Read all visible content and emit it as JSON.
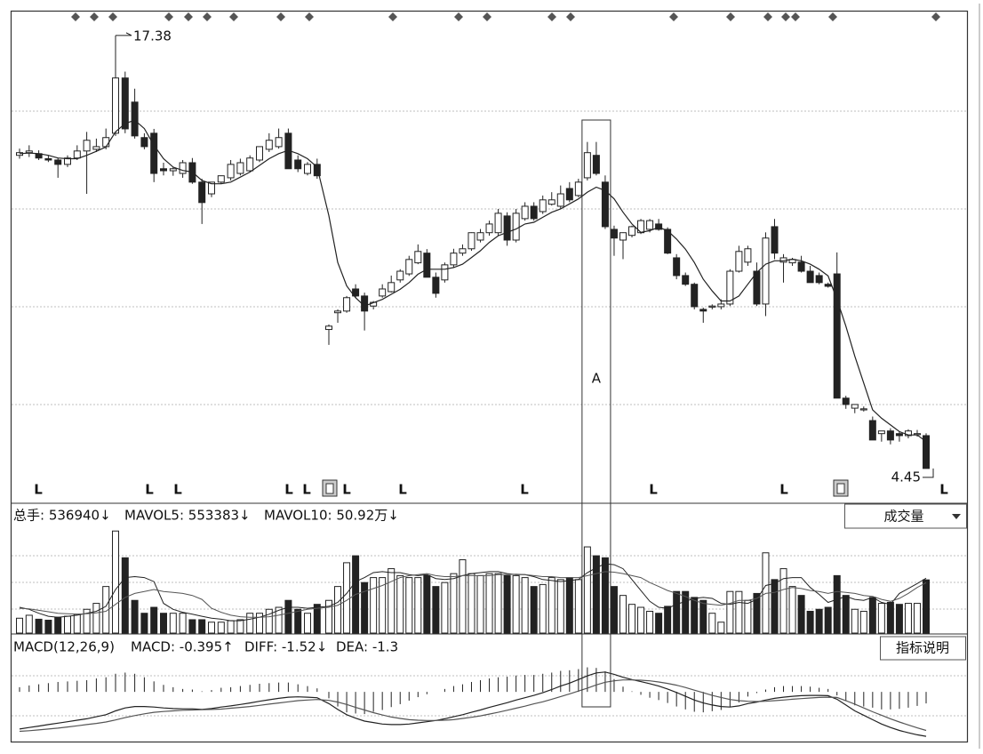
{
  "chart_data": {
    "type": "candlestick",
    "ylim": [
      3.57,
      18.12
    ],
    "annotation": "A",
    "markers": [
      "L",
      "L",
      "L",
      "L",
      "L",
      "L",
      "L",
      "L",
      "L",
      "L",
      "L"
    ],
    "open": [
      13.8,
      13.88,
      13.85,
      13.7,
      13.66,
      13.53,
      13.72,
      13.93,
      13.98,
      14.06,
      14.46,
      16.11,
      15.39,
      14.33,
      14.46,
      13.4,
      13.34,
      13.26,
      13.58,
      13.0,
      12.65,
      13.0,
      13.13,
      13.26,
      13.34,
      13.66,
      13.98,
      14.06,
      14.46,
      13.66,
      13.26,
      13.53,
      8.6,
      9.1,
      9.15,
      9.81,
      9.6,
      9.3,
      9.6,
      9.73,
      10.08,
      10.26,
      10.59,
      10.88,
      10.16,
      10.08,
      10.53,
      10.88,
      11.01,
      11.27,
      11.49,
      11.49,
      11.99,
      11.27,
      11.91,
      12.28,
      12.12,
      12.34,
      12.28,
      12.81,
      12.6,
      13.13,
      13.8,
      13.0,
      11.59,
      11.27,
      11.41,
      11.49,
      11.59,
      11.75,
      11.59,
      10.74,
      10.21,
      9.95,
      9.2,
      9.28,
      9.28,
      9.36,
      10.34,
      10.61,
      10.34,
      9.36,
      11.67,
      10.61,
      10.59,
      10.61,
      10.34,
      10.21,
      9.95,
      10.26,
      6.55,
      6.25,
      6.23,
      5.88,
      5.49,
      5.57,
      5.49,
      5.43,
      5.49,
      5.43
    ],
    "high": [
      14.0,
      14.1,
      13.95,
      13.8,
      13.72,
      13.8,
      14.1,
      14.5,
      14.3,
      14.6,
      17.38,
      16.3,
      15.79,
      14.46,
      14.59,
      13.58,
      13.45,
      13.66,
      13.72,
      13.1,
      13.0,
      13.2,
      13.66,
      13.7,
      13.8,
      14.06,
      14.46,
      14.6,
      14.6,
      13.8,
      13.6,
      13.7,
      8.75,
      9.2,
      9.6,
      9.95,
      9.7,
      9.45,
      9.95,
      10.21,
      10.4,
      10.8,
      11.14,
      11.0,
      10.3,
      10.6,
      11.01,
      11.14,
      11.5,
      11.6,
      11.85,
      12.2,
      12.1,
      12.2,
      12.4,
      12.4,
      12.6,
      12.7,
      12.9,
      13.0,
      13.1,
      14.2,
      14.2,
      13.2,
      11.7,
      11.5,
      11.7,
      11.9,
      11.9,
      11.9,
      11.65,
      10.85,
      10.3,
      10.0,
      9.25,
      9.35,
      9.5,
      10.4,
      11.1,
      11.1,
      10.6,
      11.5,
      11.9,
      10.85,
      10.74,
      10.8,
      10.5,
      10.3,
      10.0,
      10.9,
      6.62,
      6.36,
      6.3,
      6.0,
      5.57,
      5.65,
      5.55,
      5.62,
      5.6,
      5.5
    ],
    "low": [
      13.7,
      13.75,
      13.66,
      13.6,
      13.13,
      13.45,
      13.66,
      12.65,
      13.9,
      13.98,
      14.38,
      14.46,
      14.3,
      13.98,
      13.0,
      13.2,
      13.19,
      13.13,
      12.95,
      11.75,
      12.55,
      12.95,
      13.05,
      13.2,
      13.3,
      13.6,
      13.9,
      14.0,
      13.4,
      13.3,
      13.2,
      13.1,
      8.14,
      8.8,
      9.1,
      9.55,
      8.57,
      9.2,
      9.55,
      9.7,
      10.0,
      10.2,
      10.55,
      10.16,
      9.55,
      10.0,
      10.45,
      10.8,
      10.95,
      11.2,
      11.4,
      11.4,
      11.1,
      11.2,
      11.85,
      11.85,
      12.05,
      12.3,
      12.2,
      12.4,
      12.55,
      13.05,
      13.2,
      11.6,
      10.8,
      10.7,
      11.35,
      11.45,
      11.5,
      11.55,
      10.85,
      10.1,
      9.9,
      9.2,
      8.8,
      9.2,
      9.2,
      9.3,
      10.3,
      10.5,
      9.3,
      9.0,
      10.7,
      10.0,
      10.5,
      10.3,
      10.0,
      9.95,
      9.85,
      6.55,
      6.23,
      6.1,
      6.15,
      5.3,
      5.25,
      5.17,
      5.25,
      5.35,
      5.4,
      4.45
    ],
    "close": [
      13.88,
      13.93,
      13.72,
      13.66,
      13.53,
      13.72,
      13.93,
      14.25,
      14.06,
      14.33,
      16.11,
      14.59,
      14.38,
      14.06,
      13.26,
      13.34,
      13.4,
      13.58,
      13.0,
      12.39,
      13.0,
      13.19,
      13.53,
      13.58,
      13.72,
      14.06,
      14.25,
      14.33,
      13.4,
      13.4,
      13.53,
      13.19,
      8.7,
      9.15,
      9.55,
      9.6,
      9.15,
      9.41,
      9.81,
      10.0,
      10.34,
      10.69,
      10.93,
      10.16,
      9.68,
      10.53,
      10.88,
      11.01,
      11.49,
      11.49,
      11.75,
      12.07,
      11.27,
      12.07,
      12.28,
      11.91,
      12.47,
      12.47,
      12.65,
      12.47,
      13.0,
      13.88,
      13.26,
      11.67,
      11.33,
      11.49,
      11.67,
      11.85,
      11.85,
      11.59,
      10.88,
      10.21,
      9.95,
      9.28,
      9.15,
      9.3,
      9.36,
      10.34,
      10.93,
      11.01,
      9.36,
      11.33,
      10.88,
      10.74,
      10.69,
      10.34,
      10.0,
      10.0,
      9.89,
      6.55,
      6.36,
      6.36,
      6.23,
      5.3,
      5.57,
      5.3,
      5.43,
      5.57,
      5.49,
      4.45
    ],
    "ma5": [
      13.85,
      13.87,
      13.85,
      13.8,
      13.72,
      13.7,
      13.7,
      13.8,
      13.92,
      14.05,
      14.5,
      14.75,
      14.85,
      14.6,
      14.1,
      13.7,
      13.45,
      13.35,
      13.3,
      13.05,
      12.95,
      12.95,
      13.0,
      13.15,
      13.3,
      13.5,
      13.7,
      13.85,
      13.95,
      13.85,
      13.7,
      13.45,
      12.0,
      10.6,
      9.9,
      9.55,
      9.3,
      9.4,
      9.5,
      9.65,
      9.8,
      10.0,
      10.25,
      10.4,
      10.4,
      10.4,
      10.45,
      10.55,
      10.75,
      10.95,
      11.2,
      11.4,
      11.5,
      11.6,
      11.75,
      11.8,
      11.95,
      12.1,
      12.2,
      12.35,
      12.5,
      12.7,
      12.85,
      12.75,
      12.5,
      12.1,
      11.75,
      11.5,
      11.55,
      11.65,
      11.55,
      11.3,
      11.0,
      10.6,
      10.1,
      9.75,
      9.45,
      9.45,
      9.6,
      9.95,
      10.3,
      10.55,
      10.65,
      10.65,
      10.7,
      10.65,
      10.55,
      10.4,
      10.2,
      9.5,
      8.7,
      7.8,
      7.0,
      6.2,
      5.95,
      5.75,
      5.55,
      5.45,
      5.45,
      5.25
    ],
    "volume": {
      "header": [
        "总手: 536940↓",
        "MAVOL5: 553383↓",
        "MAVOL10: 50.92万↓"
      ],
      "button": "成交量",
      "ylim": [
        0,
        1050000
      ],
      "values": [
        150000,
        180000,
        140000,
        130000,
        160000,
        170000,
        190000,
        240000,
        300000,
        470000,
        1030000,
        760000,
        330000,
        200000,
        260000,
        200000,
        200000,
        200000,
        135000,
        135000,
        110000,
        110000,
        125000,
        135000,
        200000,
        200000,
        240000,
        260000,
        330000,
        240000,
        200000,
        290000,
        330000,
        470000,
        710000,
        780000,
        510000,
        560000,
        560000,
        650000,
        580000,
        560000,
        560000,
        580000,
        470000,
        510000,
        600000,
        740000,
        600000,
        580000,
        600000,
        600000,
        580000,
        580000,
        560000,
        470000,
        490000,
        560000,
        540000,
        560000,
        540000,
        870000,
        780000,
        760000,
        470000,
        380000,
        290000,
        260000,
        220000,
        200000,
        270000,
        420000,
        420000,
        360000,
        330000,
        200000,
        110000,
        420000,
        420000,
        330000,
        400000,
        810000,
        540000,
        650000,
        470000,
        380000,
        220000,
        240000,
        260000,
        580000,
        380000,
        240000,
        220000,
        360000,
        300000,
        310000,
        290000,
        300000,
        300000,
        536940
      ],
      "mavol5": [
        260000,
        240000,
        200000,
        170000,
        160000,
        170000,
        180000,
        200000,
        220000,
        270000,
        440000,
        560000,
        570000,
        560000,
        520000,
        300000,
        240000,
        210000,
        190000,
        170000,
        150000,
        140000,
        125000,
        125000,
        140000,
        160000,
        190000,
        230000,
        260000,
        260000,
        250000,
        260000,
        270000,
        310000,
        400000,
        520000,
        560000,
        610000,
        620000,
        610000,
        610000,
        590000,
        580000,
        590000,
        550000,
        540000,
        550000,
        580000,
        600000,
        610000,
        620000,
        620000,
        600000,
        590000,
        590000,
        570000,
        540000,
        530000,
        520000,
        530000,
        540000,
        610000,
        660000,
        700000,
        690000,
        650000,
        540000,
        430000,
        320000,
        260000,
        250000,
        290000,
        320000,
        350000,
        360000,
        350000,
        300000,
        290000,
        310000,
        300000,
        340000,
        480000,
        500000,
        550000,
        560000,
        560000,
        460000,
        390000,
        310000,
        340000,
        370000,
        340000,
        330000,
        360000,
        310000,
        290000,
        400000,
        450000,
        500000,
        553383
      ],
      "mavol10": [
        250000,
        245000,
        230000,
        215000,
        200000,
        195000,
        190000,
        195000,
        205000,
        220000,
        290000,
        360000,
        400000,
        420000,
        440000,
        420000,
        410000,
        400000,
        380000,
        340000,
        250000,
        210000,
        180000,
        165000,
        160000,
        160000,
        165000,
        180000,
        200000,
        220000,
        240000,
        250000,
        260000,
        280000,
        330000,
        390000,
        420000,
        450000,
        480000,
        520000,
        560000,
        580000,
        590000,
        600000,
        580000,
        570000,
        570000,
        580000,
        580000,
        580000,
        580000,
        590000,
        590000,
        595000,
        590000,
        580000,
        570000,
        570000,
        560000,
        560000,
        560000,
        580000,
        600000,
        620000,
        615000,
        600000,
        580000,
        560000,
        510000,
        470000,
        430000,
        400000,
        370000,
        330000,
        300000,
        290000,
        280000,
        300000,
        330000,
        330000,
        350000,
        400000,
        410000,
        440000,
        460000,
        450000,
        430000,
        420000,
        400000,
        420000,
        410000,
        400000,
        380000,
        370000,
        340000,
        320000,
        350000,
        400000,
        460000,
        509200
      ]
    },
    "macd": {
      "header": [
        "MACD(12,26,9)",
        "MACD: -0.395↑",
        "DIFF: -1.52↓",
        "DEA: -1.3"
      ],
      "button": "指标说明",
      "ylim": [
        -1.7,
        1.1
      ],
      "macd": [
        0.16,
        0.22,
        0.26,
        0.3,
        0.34,
        0.36,
        0.38,
        0.4,
        0.46,
        0.5,
        0.62,
        0.66,
        0.62,
        0.5,
        0.36,
        0.24,
        0.16,
        0.1,
        0.08,
        0.02,
        0.06,
        0.14,
        0.16,
        0.2,
        0.24,
        0.28,
        0.3,
        0.32,
        0.32,
        0.26,
        0.2,
        0.12,
        -0.22,
        -0.5,
        -0.7,
        -0.74,
        -0.76,
        -0.68,
        -0.62,
        -0.52,
        -0.42,
        -0.3,
        -0.18,
        -0.08,
        0,
        0.1,
        0.2,
        0.26,
        0.34,
        0.4,
        0.46,
        0.5,
        0.52,
        0.56,
        0.58,
        0.58,
        0.62,
        0.66,
        0.72,
        0.74,
        0.78,
        0.84,
        0.82,
        0.7,
        0.44,
        0.18,
        0.02,
        -0.1,
        -0.2,
        -0.28,
        -0.38,
        -0.5,
        -0.6,
        -0.68,
        -0.7,
        -0.66,
        -0.62,
        -0.52,
        -0.36,
        -0.16,
        -0.04,
        0.08,
        0.16,
        0.2,
        0.2,
        0.2,
        0.18,
        0.14,
        0.1,
        -0.12,
        -0.3,
        -0.46,
        -0.5,
        -0.54,
        -0.6,
        -0.6,
        -0.58,
        -0.54,
        -0.48,
        -0.395
      ],
      "diff": [
        -1.27,
        -1.22,
        -1.17,
        -1.12,
        -1.07,
        -1.02,
        -0.97,
        -0.92,
        -0.85,
        -0.78,
        -0.65,
        -0.55,
        -0.5,
        -0.5,
        -0.52,
        -0.55,
        -0.57,
        -0.58,
        -0.58,
        -0.6,
        -0.57,
        -0.52,
        -0.48,
        -0.43,
        -0.38,
        -0.32,
        -0.27,
        -0.22,
        -0.18,
        -0.17,
        -0.18,
        -0.2,
        -0.4,
        -0.6,
        -0.78,
        -0.9,
        -1.0,
        -1.05,
        -1.1,
        -1.12,
        -1.12,
        -1.1,
        -1.06,
        -1.02,
        -0.98,
        -0.92,
        -0.85,
        -0.78,
        -0.7,
        -0.62,
        -0.53,
        -0.45,
        -0.37,
        -0.28,
        -0.2,
        -0.12,
        -0.03,
        0.08,
        0.2,
        0.3,
        0.42,
        0.55,
        0.65,
        0.68,
        0.6,
        0.5,
        0.42,
        0.35,
        0.28,
        0.2,
        0.1,
        -0.02,
        -0.15,
        -0.28,
        -0.38,
        -0.45,
        -0.5,
        -0.52,
        -0.48,
        -0.4,
        -0.35,
        -0.28,
        -0.22,
        -0.18,
        -0.15,
        -0.13,
        -0.12,
        -0.12,
        -0.13,
        -0.25,
        -0.45,
        -0.65,
        -0.8,
        -0.95,
        -1.1,
        -1.22,
        -1.32,
        -1.4,
        -1.47,
        -1.52
      ],
      "dea": [
        -1.35,
        -1.33,
        -1.3,
        -1.27,
        -1.24,
        -1.2,
        -1.16,
        -1.12,
        -1.08,
        -1.03,
        -0.96,
        -0.88,
        -0.81,
        -0.75,
        -0.7,
        -0.67,
        -0.65,
        -0.63,
        -0.62,
        -0.61,
        -0.6,
        -0.59,
        -0.56,
        -0.53,
        -0.5,
        -0.46,
        -0.42,
        -0.38,
        -0.34,
        -0.3,
        -0.28,
        -0.26,
        -0.29,
        -0.35,
        -0.43,
        -0.53,
        -0.62,
        -0.71,
        -0.79,
        -0.86,
        -0.91,
        -0.95,
        -0.97,
        -0.98,
        -0.98,
        -0.97,
        -0.95,
        -0.91,
        -0.87,
        -0.82,
        -0.76,
        -0.7,
        -0.63,
        -0.56,
        -0.49,
        -0.41,
        -0.34,
        -0.25,
        -0.16,
        -0.07,
        0.03,
        0.13,
        0.24,
        0.33,
        0.38,
        0.41,
        0.41,
        0.4,
        0.38,
        0.34,
        0.29,
        0.23,
        0.15,
        0.06,
        -0.03,
        -0.12,
        -0.19,
        -0.26,
        -0.3,
        -0.32,
        -0.33,
        -0.32,
        -0.3,
        -0.28,
        -0.25,
        -0.23,
        -0.21,
        -0.19,
        -0.18,
        -0.19,
        -0.3,
        -0.42,
        -0.55,
        -0.68,
        -0.8,
        -0.92,
        -1.03,
        -1.13,
        -1.23,
        -1.32
      ]
    }
  }
}
